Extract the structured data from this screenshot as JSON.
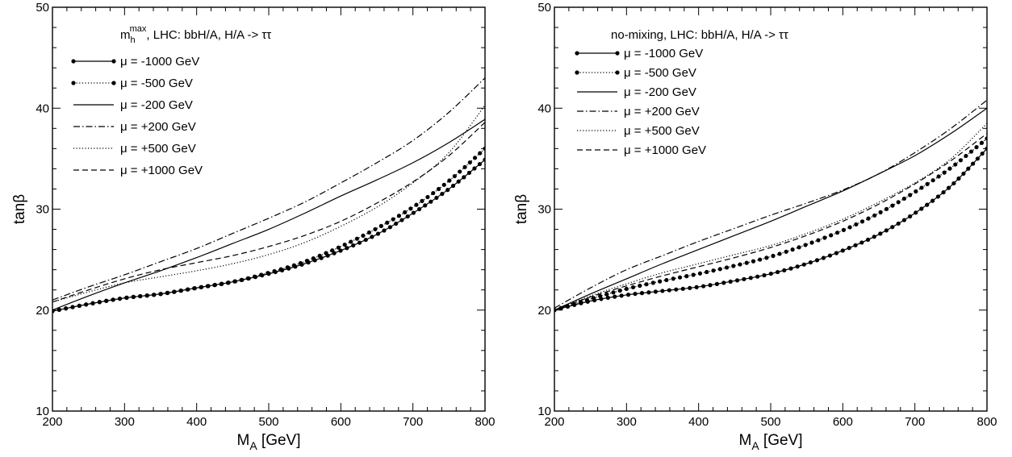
{
  "chart_data": [
    {
      "type": "line",
      "title": "m_h^max, LHC: bbH/A, H/A -> ττ",
      "title_parts": {
        "m": "m",
        "sub": "h",
        "sup": "max",
        "rest": ", LHC: bbH/A, H/A -> ττ"
      },
      "xlabel": "M_A [GeV]",
      "xlabel_parts": {
        "main": "M",
        "sub": "A",
        "rest": " [GeV]"
      },
      "ylabel": "tanβ",
      "xlim": [
        200,
        800
      ],
      "ylim": [
        10,
        50
      ],
      "x_ticks": [
        "200",
        "300",
        "400",
        "500",
        "600",
        "700",
        "800"
      ],
      "y_ticks": [
        "10",
        "20",
        "30",
        "40",
        "50"
      ],
      "legend_position": "top-left",
      "series": [
        {
          "name": "μ = -1000 GeV",
          "style": "solid-dots",
          "x": [
            200,
            250,
            300,
            350,
            400,
            450,
            500,
            550,
            600,
            650,
            700,
            750,
            800
          ],
          "y": [
            19.9,
            20.6,
            21.2,
            21.6,
            22.2,
            22.8,
            23.6,
            24.6,
            25.9,
            27.5,
            29.6,
            32.0,
            34.9
          ]
        },
        {
          "name": "μ = -500 GeV",
          "style": "dotted-dots",
          "x": [
            200,
            250,
            300,
            350,
            400,
            450,
            500,
            550,
            600,
            650,
            700,
            750,
            800
          ],
          "y": [
            19.9,
            20.6,
            21.2,
            21.6,
            22.2,
            22.8,
            23.7,
            24.8,
            26.3,
            28.1,
            30.2,
            32.8,
            36.0
          ]
        },
        {
          "name": "μ = -200 GeV",
          "style": "solid",
          "x": [
            200,
            250,
            300,
            350,
            400,
            450,
            500,
            550,
            600,
            650,
            700,
            750,
            800
          ],
          "y": [
            20.0,
            21.4,
            22.7,
            23.9,
            25.2,
            26.6,
            28.0,
            29.6,
            31.3,
            32.9,
            34.6,
            36.6,
            38.9
          ]
        },
        {
          "name": "μ = +200 GeV",
          "style": "dashdot",
          "x": [
            200,
            250,
            300,
            350,
            400,
            450,
            500,
            550,
            600,
            650,
            700,
            750,
            800
          ],
          "y": [
            21.0,
            22.3,
            23.5,
            24.8,
            26.1,
            27.6,
            29.1,
            30.7,
            32.6,
            34.6,
            36.8,
            39.6,
            43.0
          ]
        },
        {
          "name": "μ = +500 GeV",
          "style": "dotted",
          "x": [
            200,
            250,
            300,
            350,
            400,
            450,
            500,
            550,
            600,
            650,
            700,
            750,
            800
          ],
          "y": [
            20.8,
            21.8,
            22.7,
            23.3,
            23.9,
            24.6,
            25.5,
            26.7,
            28.3,
            30.2,
            32.6,
            35.6,
            40.3
          ]
        },
        {
          "name": "μ = +1000 GeV",
          "style": "dashed",
          "x": [
            200,
            250,
            300,
            350,
            400,
            450,
            500,
            550,
            600,
            650,
            700,
            750,
            800
          ],
          "y": [
            20.8,
            22.0,
            23.1,
            24.0,
            24.7,
            25.4,
            26.3,
            27.4,
            28.8,
            30.6,
            32.7,
            35.3,
            38.6
          ]
        }
      ]
    },
    {
      "type": "line",
      "title": "no-mixing, LHC: bbH/A, H/A -> ττ",
      "title_parts": {
        "m": "",
        "sub": "",
        "sup": "",
        "rest": "no-mixing, LHC: bbH/A, H/A -> ττ"
      },
      "xlabel": "M_A [GeV]",
      "xlabel_parts": {
        "main": "M",
        "sub": "A",
        "rest": " [GeV]"
      },
      "ylabel": "tanβ",
      "xlim": [
        200,
        800
      ],
      "ylim": [
        10,
        50
      ],
      "x_ticks": [
        "200",
        "300",
        "400",
        "500",
        "600",
        "700",
        "800"
      ],
      "y_ticks": [
        "10",
        "20",
        "30",
        "40",
        "50"
      ],
      "legend_position": "top-left",
      "series": [
        {
          "name": "μ = -1000 GeV",
          "style": "solid-dots",
          "x": [
            200,
            250,
            300,
            350,
            400,
            450,
            500,
            550,
            600,
            650,
            700,
            750,
            800
          ],
          "y": [
            20.0,
            20.9,
            21.5,
            21.9,
            22.3,
            22.9,
            23.6,
            24.6,
            25.9,
            27.5,
            29.6,
            32.3,
            36.0
          ]
        },
        {
          "name": "μ = -500 GeV",
          "style": "dotted-dots",
          "x": [
            200,
            250,
            300,
            350,
            400,
            450,
            500,
            550,
            600,
            650,
            700,
            750,
            800
          ],
          "y": [
            20.0,
            21.1,
            22.1,
            22.9,
            23.6,
            24.4,
            25.3,
            26.5,
            27.9,
            29.6,
            31.7,
            34.1,
            37.0
          ]
        },
        {
          "name": "μ = -200 GeV",
          "style": "solid",
          "x": [
            200,
            250,
            300,
            350,
            400,
            450,
            500,
            550,
            600,
            650,
            700,
            750,
            800
          ],
          "y": [
            20.0,
            21.6,
            23.1,
            24.6,
            26.0,
            27.4,
            28.8,
            30.3,
            31.8,
            33.5,
            35.3,
            37.5,
            40.0
          ]
        },
        {
          "name": "μ = +200 GeV",
          "style": "dashdot",
          "x": [
            200,
            250,
            300,
            350,
            400,
            450,
            500,
            550,
            600,
            650,
            700,
            750,
            800
          ],
          "y": [
            20.2,
            22.2,
            24.0,
            25.4,
            26.8,
            28.1,
            29.4,
            30.6,
            31.9,
            33.5,
            35.6,
            38.0,
            40.8
          ]
        },
        {
          "name": "μ = +500 GeV",
          "style": "dotted",
          "x": [
            200,
            250,
            300,
            350,
            400,
            450,
            500,
            550,
            600,
            650,
            700,
            750,
            800
          ],
          "y": [
            20.0,
            21.4,
            22.6,
            23.7,
            24.6,
            25.5,
            26.4,
            27.6,
            29.0,
            30.7,
            32.6,
            35.0,
            38.5
          ]
        },
        {
          "name": "μ = +1000 GeV",
          "style": "dashed",
          "x": [
            200,
            250,
            300,
            350,
            400,
            450,
            500,
            550,
            600,
            650,
            700,
            750,
            800
          ],
          "y": [
            20.0,
            21.3,
            22.4,
            23.4,
            24.3,
            25.2,
            26.2,
            27.4,
            28.8,
            30.5,
            32.5,
            34.8,
            37.5
          ]
        }
      ]
    }
  ]
}
